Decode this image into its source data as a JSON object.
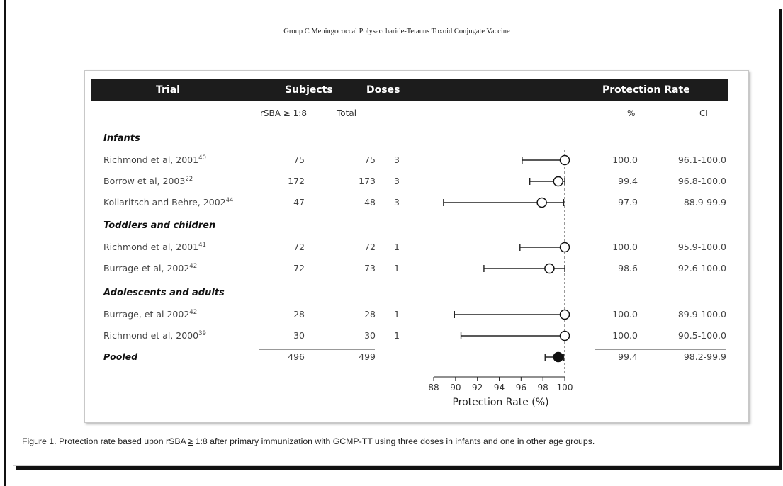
{
  "running_head": "Group C Meningococcal Polysaccharide-Tetanus Toxoid Conjugate Vaccine",
  "header": {
    "trial": "Trial",
    "subjects": "Subjects",
    "doses": "Doses",
    "protection_rate": "Protection Rate"
  },
  "subheader": {
    "rsba": "rSBA ≥ 1:8",
    "total": "Total",
    "pct": "%",
    "ci": "CI"
  },
  "groups": [
    "Infants",
    "Toddlers and children",
    "Adolescents and adults"
  ],
  "rows": [
    {
      "trial": "Richmond et al, 2001",
      "ref": "40",
      "rsba": "75",
      "total": "75",
      "doses": "3",
      "pct": "100.0",
      "ci": "96.1-100.0"
    },
    {
      "trial": "Borrow et al, 2003",
      "ref": "22",
      "rsba": "172",
      "total": "173",
      "doses": "3",
      "pct": "99.4",
      "ci": "96.8-100.0"
    },
    {
      "trial": "Kollaritsch and Behre, 2002",
      "ref": "44",
      "rsba": "47",
      "total": "48",
      "doses": "3",
      "pct": "97.9",
      "ci": "88.9-99.9"
    },
    {
      "trial": "Richmond et al, 2001",
      "ref": "41",
      "rsba": "72",
      "total": "72",
      "doses": "1",
      "pct": "100.0",
      "ci": "95.9-100.0"
    },
    {
      "trial": "Burrage et al, 2002",
      "ref": "42",
      "rsba": "72",
      "total": "73",
      "doses": "1",
      "pct": "98.6",
      "ci": "92.6-100.0"
    },
    {
      "trial": "Burrage, et al 2002",
      "ref": "42",
      "rsba": "28",
      "total": "28",
      "doses": "1",
      "pct": "100.0",
      "ci": "89.9-100.0"
    },
    {
      "trial": "Richmond et al, 2000",
      "ref": "39",
      "rsba": "30",
      "total": "30",
      "doses": "1",
      "pct": "100.0",
      "ci": "90.5-100.0"
    }
  ],
  "pooled": {
    "label": "Pooled",
    "rsba": "496",
    "total": "499",
    "pct": "99.4",
    "ci": "98.2-99.9"
  },
  "chart_data": {
    "type": "forest",
    "xlabel": "Protection Rate (%)",
    "xlim": [
      88,
      100
    ],
    "xticks": [
      88,
      90,
      92,
      94,
      96,
      98,
      100
    ],
    "reference_line": 100,
    "points": [
      {
        "estimate": 100.0,
        "lower": 96.1,
        "upper": 100.0,
        "marker": "open"
      },
      {
        "estimate": 99.4,
        "lower": 96.8,
        "upper": 100.0,
        "marker": "open"
      },
      {
        "estimate": 97.9,
        "lower": 88.9,
        "upper": 99.9,
        "marker": "open"
      },
      {
        "estimate": 100.0,
        "lower": 95.9,
        "upper": 100.0,
        "marker": "open"
      },
      {
        "estimate": 98.6,
        "lower": 92.6,
        "upper": 100.0,
        "marker": "open"
      },
      {
        "estimate": 100.0,
        "lower": 89.9,
        "upper": 100.0,
        "marker": "open"
      },
      {
        "estimate": 100.0,
        "lower": 90.5,
        "upper": 100.0,
        "marker": "open"
      },
      {
        "estimate": 99.4,
        "lower": 98.2,
        "upper": 99.9,
        "marker": "filled"
      }
    ]
  },
  "caption": {
    "before": "Figure 1. Protection rate based upon rSBA ",
    "ge": "≥",
    "after": " 1:8 after primary immunization with GCMP-TT using three doses in infants and one in other age groups."
  }
}
